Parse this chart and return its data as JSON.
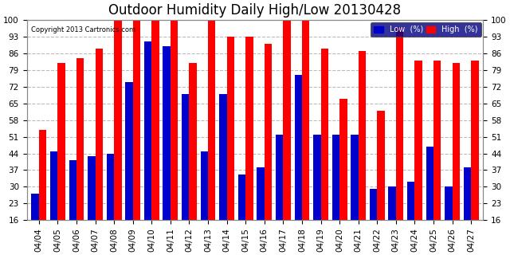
{
  "title": "Outdoor Humidity Daily High/Low 20130428",
  "copyright": "Copyright 2013 Cartronics.com",
  "dates": [
    "04/04",
    "04/05",
    "04/06",
    "04/07",
    "04/08",
    "04/09",
    "04/10",
    "04/11",
    "04/12",
    "04/13",
    "04/14",
    "04/15",
    "04/16",
    "04/17",
    "04/18",
    "04/19",
    "04/20",
    "04/21",
    "04/22",
    "04/23",
    "04/24",
    "04/25",
    "04/26",
    "04/27"
  ],
  "high": [
    54,
    82,
    84,
    88,
    100,
    100,
    100,
    100,
    82,
    100,
    93,
    93,
    90,
    100,
    100,
    88,
    67,
    87,
    62,
    97,
    83,
    83,
    82,
    83
  ],
  "low": [
    27,
    45,
    41,
    43,
    44,
    74,
    91,
    89,
    69,
    45,
    69,
    35,
    38,
    52,
    77,
    52,
    52,
    52,
    29,
    30,
    32,
    47,
    30,
    38
  ],
  "high_color": "#ff0000",
  "low_color": "#0000cc",
  "bg_color": "#ffffff",
  "grid_color": "#bbbbbb",
  "ylim_min": 16,
  "ylim_max": 100,
  "yticks": [
    16,
    23,
    30,
    37,
    44,
    51,
    58,
    65,
    72,
    79,
    86,
    93,
    100
  ],
  "bar_width": 0.4,
  "title_fontsize": 12,
  "tick_fontsize": 7.5,
  "legend_low_label": "Low  (%)",
  "legend_high_label": "High  (%)"
}
